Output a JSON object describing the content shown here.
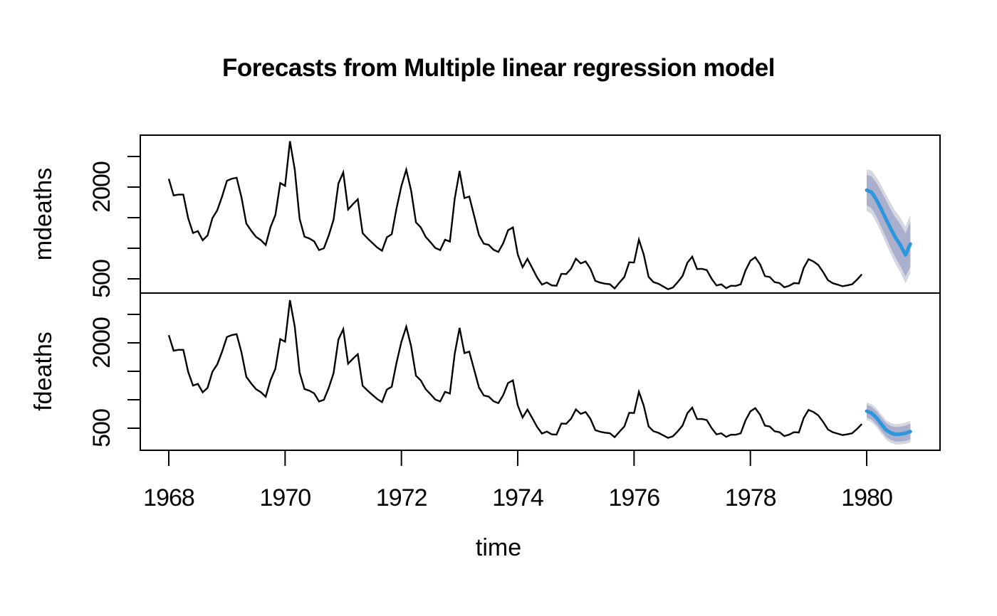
{
  "title": "Forecasts from Multiple linear regression model",
  "x_axis": {
    "label": "time",
    "tick_values": [
      1968,
      1970,
      1972,
      1974,
      1976,
      1978,
      1980
    ],
    "tick_labels": [
      "1968",
      "1970",
      "1972",
      "1974",
      "1976",
      "1978",
      "1980"
    ]
  },
  "colors": {
    "background": "#ffffff",
    "panel_border": "#000000",
    "history_line": "#000000",
    "forecast_mean": "#2d96dc",
    "interval_80": "#a9afcd",
    "interval_95": "#d6d7e0",
    "text": "#000000"
  },
  "chart_data": {
    "type": "line",
    "title": "Forecasts from Multiple linear regression model",
    "xlabel": "time",
    "grid": false,
    "legend": "none",
    "x_start": 1968,
    "frequency": 12,
    "xlim": [
      1967.55,
      1981.24
    ],
    "x_ticks": [
      1968,
      1970,
      1972,
      1974,
      1976,
      1978,
      1980
    ],
    "panels": [
      {
        "ylabel": "mdeaths",
        "ylim": [
          290,
          2850
        ],
        "y_ticks": [
          500,
          1000,
          1500,
          2000,
          2500
        ],
        "y_tick_labels": [
          "500",
          "",
          "",
          "2000",
          ""
        ],
        "history": [
          2134,
          1863,
          1877,
          1877,
          1492,
          1249,
          1280,
          1131,
          1209,
          1492,
          1621,
          1846,
          2103,
          2137,
          2153,
          1833,
          1403,
          1288,
          1186,
          1133,
          1053,
          1347,
          1545,
          2066,
          2020,
          2750,
          2283,
          1479,
          1189,
          1160,
          1113,
          970,
          999,
          1208,
          1467,
          2059,
          2240,
          1634,
          1722,
          1801,
          1246,
          1162,
          1087,
          1013,
          959,
          1179,
          1229,
          1655,
          2019,
          2284,
          1942,
          1423,
          1340,
          1187,
          1098,
          1004,
          970,
          1140,
          1110,
          1812,
          2263,
          1820,
          1846,
          1531,
          1215,
          1075,
          1056,
          975,
          940,
          1081,
          1294,
          1341,
          901,
          689,
          827,
          677,
          522,
          406,
          441,
          393,
          387,
          582,
          578,
          666,
          830,
          752,
          785,
          664,
          467,
          438,
          421,
          412,
          343,
          440,
          531,
          771,
          767,
          1141,
          896,
          532,
          447,
          420,
          376,
          330,
          357,
          445,
          546,
          764,
          862,
          660,
          663,
          643,
          502,
          392,
          411,
          348,
          387,
          385,
          411,
          638,
          796,
          853,
          737,
          546,
          530,
          446,
          431,
          362,
          387,
          430,
          425,
          679,
          821,
          785,
          727,
          612,
          478,
          429,
          405,
          379,
          393,
          411,
          487,
          574
        ],
        "forecast": {
          "x_start": 1980,
          "frequency": 12,
          "mean": [
            1950,
            1915,
            1795,
            1640,
            1475,
            1315,
            1165,
            1045,
            890,
            1070
          ],
          "lo80": [
            1700,
            1652,
            1519,
            1351,
            1173,
            1000,
            837,
            704,
            536,
            703
          ],
          "hi80": [
            2200,
            2178,
            2071,
            1929,
            1777,
            1630,
            1493,
            1386,
            1244,
            1437
          ],
          "lo95": [
            1610,
            1559,
            1424,
            1253,
            1073,
            897,
            732,
            596,
            426,
            590
          ],
          "hi95": [
            2290,
            2271,
            2166,
            2027,
            1877,
            1733,
            1598,
            1494,
            1354,
            1550
          ]
        }
      },
      {
        "ylabel": "fdeaths",
        "ylim": [
          150,
          2900
        ],
        "y_ticks": [
          500,
          1000,
          1500,
          2000,
          2500
        ],
        "y_tick_labels": [
          "500",
          "",
          "",
          "2000",
          ""
        ],
        "history": [
          2134,
          1863,
          1877,
          1877,
          1492,
          1249,
          1280,
          1131,
          1209,
          1492,
          1621,
          1846,
          2103,
          2137,
          2153,
          1833,
          1403,
          1288,
          1186,
          1133,
          1053,
          1347,
          1545,
          2066,
          2020,
          2750,
          2283,
          1479,
          1189,
          1160,
          1113,
          970,
          999,
          1208,
          1467,
          2059,
          2240,
          1634,
          1722,
          1801,
          1246,
          1162,
          1087,
          1013,
          959,
          1179,
          1229,
          1655,
          2019,
          2284,
          1942,
          1423,
          1340,
          1187,
          1098,
          1004,
          970,
          1140,
          1110,
          1812,
          2263,
          1820,
          1846,
          1531,
          1215,
          1075,
          1056,
          975,
          940,
          1081,
          1294,
          1341,
          901,
          689,
          827,
          677,
          522,
          406,
          441,
          393,
          387,
          582,
          578,
          666,
          830,
          752,
          785,
          664,
          467,
          438,
          421,
          412,
          343,
          440,
          531,
          771,
          767,
          1141,
          896,
          532,
          447,
          420,
          376,
          330,
          357,
          445,
          546,
          764,
          862,
          660,
          663,
          643,
          502,
          392,
          411,
          348,
          387,
          385,
          411,
          638,
          796,
          853,
          737,
          546,
          530,
          446,
          431,
          362,
          387,
          430,
          425,
          679,
          821,
          785,
          727,
          612,
          478,
          429,
          405,
          379,
          393,
          411,
          487,
          574
        ],
        "forecast": {
          "x_start": 1980,
          "frequency": 12,
          "mean": [
            800,
            765,
            685,
            575,
            470,
            415,
            392,
            398,
            412,
            440
          ],
          "lo80": [
            690,
            652,
            569,
            456,
            348,
            290,
            264,
            267,
            278,
            302
          ],
          "hi80": [
            910,
            878,
            801,
            694,
            592,
            540,
            520,
            529,
            546,
            578
          ],
          "lo95": [
            645,
            606,
            522,
            408,
            299,
            240,
            213,
            215,
            225,
            248
          ],
          "hi95": [
            955,
            924,
            848,
            742,
            641,
            590,
            571,
            581,
            599,
            632
          ]
        }
      }
    ]
  }
}
